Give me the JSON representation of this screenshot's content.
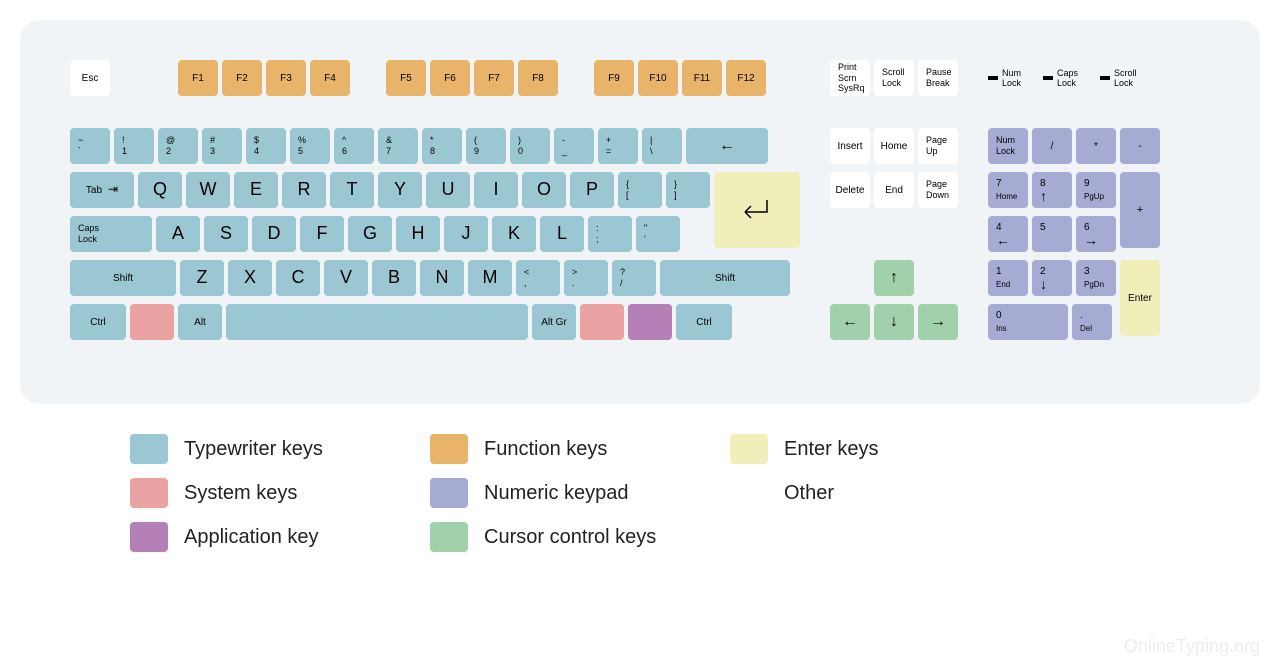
{
  "colors": {
    "typewriter": "#9bc7d3",
    "function": "#e8b46a",
    "enter": "#f0efb9",
    "system": "#eba2a2",
    "numeric": "#a5abd3",
    "application": "#b57fb8",
    "cursor": "#a0d1ab",
    "other": "#ffffff",
    "panel_bg": "#f1f4f6",
    "text": "#222222"
  },
  "key_height": 36,
  "key_unit": 40,
  "legend": [
    {
      "color_key": "typewriter",
      "label": "Typewriter keys"
    },
    {
      "color_key": "function",
      "label": "Function keys"
    },
    {
      "color_key": "enter",
      "label": "Enter keys"
    },
    {
      "color_key": "system",
      "label": "System keys"
    },
    {
      "color_key": "numeric",
      "label": "Numeric keypad"
    },
    {
      "color_key": null,
      "label": "Other"
    },
    {
      "color_key": "application",
      "label": "Application key"
    },
    {
      "color_key": "cursor",
      "label": "Cursor control keys"
    }
  ],
  "func_row": {
    "esc": {
      "label": "Esc",
      "cat": "other"
    },
    "groups": [
      [
        "F1",
        "F2",
        "F3",
        "F4"
      ],
      [
        "F5",
        "F6",
        "F7",
        "F8"
      ],
      [
        "F9",
        "F10",
        "F11",
        "F12"
      ]
    ],
    "sys3": [
      {
        "l1": "Print",
        "l2": "Scrn",
        "l3": "SysRq"
      },
      {
        "l1": "Scroll",
        "l2": "Lock",
        "l3": ""
      },
      {
        "l1": "Pause",
        "l2": "Break",
        "l3": ""
      }
    ],
    "locks": [
      {
        "l1": "Num",
        "l2": "Lock"
      },
      {
        "l1": "Caps",
        "l2": "Lock"
      },
      {
        "l1": "Scroll",
        "l2": "Lock"
      }
    ]
  },
  "row1": [
    {
      "top": "~",
      "bot": "`",
      "cat": "typewriter",
      "w": 1
    },
    {
      "top": "!",
      "bot": "1",
      "cat": "typewriter",
      "w": 1
    },
    {
      "top": "@",
      "bot": "2",
      "cat": "typewriter",
      "w": 1
    },
    {
      "top": "#",
      "bot": "3",
      "cat": "typewriter",
      "w": 1
    },
    {
      "top": "$",
      "bot": "4",
      "cat": "typewriter",
      "w": 1
    },
    {
      "top": "%",
      "bot": "5",
      "cat": "typewriter",
      "w": 1
    },
    {
      "top": "^",
      "bot": "6",
      "cat": "typewriter",
      "w": 1
    },
    {
      "top": "&",
      "bot": "7",
      "cat": "typewriter",
      "w": 1
    },
    {
      "top": "*",
      "bot": "8",
      "cat": "typewriter",
      "w": 1
    },
    {
      "top": "(",
      "bot": "9",
      "cat": "typewriter",
      "w": 1
    },
    {
      "top": ")",
      "bot": "0",
      "cat": "typewriter",
      "w": 1
    },
    {
      "top": "-",
      "bot": "_",
      "cat": "typewriter",
      "w": 1
    },
    {
      "top": "+",
      "bot": "=",
      "cat": "typewriter",
      "w": 1
    },
    {
      "top": "|",
      "bot": "\\",
      "cat": "typewriter",
      "w": 1
    },
    {
      "glyph": "←",
      "label": "Backspace",
      "cat": "typewriter",
      "w": 2.05,
      "arrow": true
    }
  ],
  "row2": [
    {
      "label": "Tab",
      "cat": "typewriter",
      "w": 1.6,
      "tab": true
    },
    {
      "big": "Q",
      "cat": "typewriter",
      "w": 1.1
    },
    {
      "big": "W",
      "cat": "typewriter",
      "w": 1.1
    },
    {
      "big": "E",
      "cat": "typewriter",
      "w": 1.1
    },
    {
      "big": "R",
      "cat": "typewriter",
      "w": 1.1
    },
    {
      "big": "T",
      "cat": "typewriter",
      "w": 1.1
    },
    {
      "big": "Y",
      "cat": "typewriter",
      "w": 1.1
    },
    {
      "big": "U",
      "cat": "typewriter",
      "w": 1.1
    },
    {
      "big": "I",
      "cat": "typewriter",
      "w": 1.1
    },
    {
      "big": "O",
      "cat": "typewriter",
      "w": 1.1
    },
    {
      "big": "P",
      "cat": "typewriter",
      "w": 1.1
    },
    {
      "top": "{",
      "bot": "[",
      "cat": "typewriter",
      "w": 1.1
    },
    {
      "top": "}",
      "bot": "]",
      "cat": "typewriter",
      "w": 1.1
    }
  ],
  "enter": {
    "cat": "enter",
    "w": 2.15,
    "h": 2,
    "glyph": "↵"
  },
  "row3": [
    {
      "l1": "Caps",
      "l2": "Lock",
      "cat": "typewriter",
      "w": 2.05
    },
    {
      "big": "A",
      "cat": "typewriter",
      "w": 1.1
    },
    {
      "big": "S",
      "cat": "typewriter",
      "w": 1.1
    },
    {
      "big": "D",
      "cat": "typewriter",
      "w": 1.1
    },
    {
      "big": "F",
      "cat": "typewriter",
      "w": 1.1
    },
    {
      "big": "G",
      "cat": "typewriter",
      "w": 1.1
    },
    {
      "big": "H",
      "cat": "typewriter",
      "w": 1.1
    },
    {
      "big": "J",
      "cat": "typewriter",
      "w": 1.1
    },
    {
      "big": "K",
      "cat": "typewriter",
      "w": 1.1
    },
    {
      "big": "L",
      "cat": "typewriter",
      "w": 1.1
    },
    {
      "top": ":",
      "bot": ";",
      "cat": "typewriter",
      "w": 1.1
    },
    {
      "top": "\"",
      "bot": "'",
      "cat": "typewriter",
      "w": 1.1
    }
  ],
  "row4": [
    {
      "label": "Shift",
      "cat": "typewriter",
      "w": 2.65
    },
    {
      "big": "Z",
      "cat": "typewriter",
      "w": 1.1
    },
    {
      "big": "X",
      "cat": "typewriter",
      "w": 1.1
    },
    {
      "big": "C",
      "cat": "typewriter",
      "w": 1.1
    },
    {
      "big": "V",
      "cat": "typewriter",
      "w": 1.1
    },
    {
      "big": "B",
      "cat": "typewriter",
      "w": 1.1
    },
    {
      "big": "N",
      "cat": "typewriter",
      "w": 1.1
    },
    {
      "big": "M",
      "cat": "typewriter",
      "w": 1.1
    },
    {
      "top": "<",
      "bot": ",",
      "cat": "typewriter",
      "w": 1.1
    },
    {
      "top": ">",
      "bot": ".",
      "cat": "typewriter",
      "w": 1.1
    },
    {
      "top": "?",
      "bot": "/",
      "cat": "typewriter",
      "w": 1.1
    },
    {
      "label": "Shift",
      "cat": "typewriter",
      "w": 3.25
    }
  ],
  "row5": [
    {
      "label": "Ctrl",
      "cat": "typewriter",
      "w": 1.4
    },
    {
      "label": "",
      "cat": "system",
      "w": 1.1
    },
    {
      "label": "Alt",
      "cat": "typewriter",
      "w": 1.1
    },
    {
      "label": "",
      "cat": "typewriter",
      "w": 7.55
    },
    {
      "label": "Alt Gr",
      "cat": "typewriter",
      "w": 1.1
    },
    {
      "label": "",
      "cat": "system",
      "w": 1.1
    },
    {
      "label": "",
      "cat": "application",
      "w": 1.1
    },
    {
      "label": "Ctrl",
      "cat": "typewriter",
      "w": 1.4
    }
  ],
  "nav1": [
    {
      "label": "Insert",
      "cat": "other"
    },
    {
      "label": "Home",
      "cat": "other"
    },
    {
      "l1": "Page",
      "l2": "Up",
      "cat": "other"
    }
  ],
  "nav2": [
    {
      "label": "Delete",
      "cat": "other"
    },
    {
      "label": "End",
      "cat": "other"
    },
    {
      "l1": "Page",
      "l2": "Down",
      "cat": "other"
    }
  ],
  "arrows": {
    "up": {
      "glyph": "↑",
      "cat": "cursor"
    },
    "left": {
      "glyph": "←",
      "cat": "cursor"
    },
    "down": {
      "glyph": "↓",
      "cat": "cursor"
    },
    "right": {
      "glyph": "→",
      "cat": "cursor"
    }
  },
  "numpad": {
    "r1": [
      {
        "l1": "Num",
        "l2": "Lock",
        "cat": "numeric"
      },
      {
        "label": "/",
        "cat": "numeric"
      },
      {
        "label": "*",
        "cat": "numeric"
      },
      {
        "label": "-",
        "cat": "numeric"
      }
    ],
    "r2": [
      {
        "t": "7",
        "b": "Home",
        "cat": "numeric"
      },
      {
        "t": "8",
        "b": "↑",
        "cat": "numeric",
        "arrow": true
      },
      {
        "t": "9",
        "b": "PgUp",
        "cat": "numeric"
      }
    ],
    "plus": {
      "label": "+",
      "cat": "numeric"
    },
    "r3": [
      {
        "t": "4",
        "b": "←",
        "cat": "numeric",
        "arrow": true
      },
      {
        "t": "5",
        "b": "",
        "cat": "numeric"
      },
      {
        "t": "6",
        "b": "→",
        "cat": "numeric",
        "arrow": true
      }
    ],
    "r4": [
      {
        "t": "1",
        "b": "End",
        "cat": "numeric"
      },
      {
        "t": "2",
        "b": "↓",
        "cat": "numeric",
        "arrow": true
      },
      {
        "t": "3",
        "b": "PgDn",
        "cat": "numeric"
      }
    ],
    "enter": {
      "label": "Enter",
      "cat": "enter"
    },
    "r5": [
      {
        "t": "0",
        "b": "Ins",
        "cat": "numeric",
        "w": 2
      },
      {
        "t": ".",
        "b": "Del",
        "cat": "numeric",
        "w": 1
      }
    ]
  },
  "watermark": "OnlineTyping.org"
}
